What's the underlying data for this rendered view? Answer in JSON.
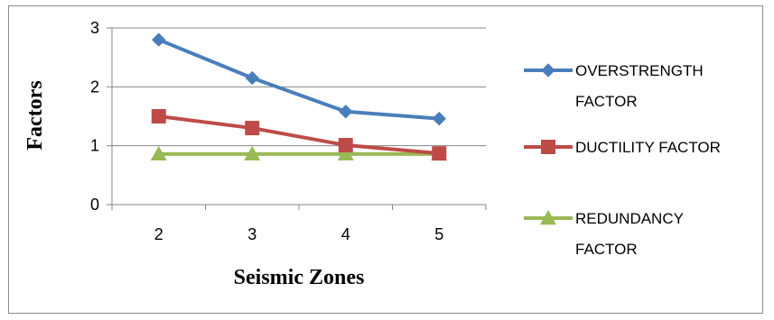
{
  "chart_data": {
    "type": "line",
    "title": "",
    "xlabel": "Seismic Zones",
    "ylabel": "Factors",
    "categories": [
      "2",
      "3",
      "4",
      "5"
    ],
    "ylim": [
      0,
      3
    ],
    "yticks": [
      "0",
      "1",
      "2",
      "3"
    ],
    "grid": true,
    "legend_position": "right",
    "series": [
      {
        "name": "OVERSTRENGTH FACTOR",
        "name_lines": [
          "OVERSTRENGTH",
          "FACTOR"
        ],
        "values": [
          2.8,
          2.15,
          1.58,
          1.46
        ],
        "color": "#4a7ebb",
        "marker": "diamond"
      },
      {
        "name": "DUCTILITY FACTOR",
        "name_lines": [
          "DUCTILITY FACTOR"
        ],
        "values": [
          1.5,
          1.3,
          1.01,
          0.87
        ],
        "color": "#be4b48",
        "marker": "square"
      },
      {
        "name": "REDUNDANCY FACTOR",
        "name_lines": [
          "REDUNDANCY",
          "FACTOR"
        ],
        "values": [
          0.86,
          0.86,
          0.86,
          0.86
        ],
        "color": "#98b954",
        "marker": "triangle"
      }
    ]
  }
}
